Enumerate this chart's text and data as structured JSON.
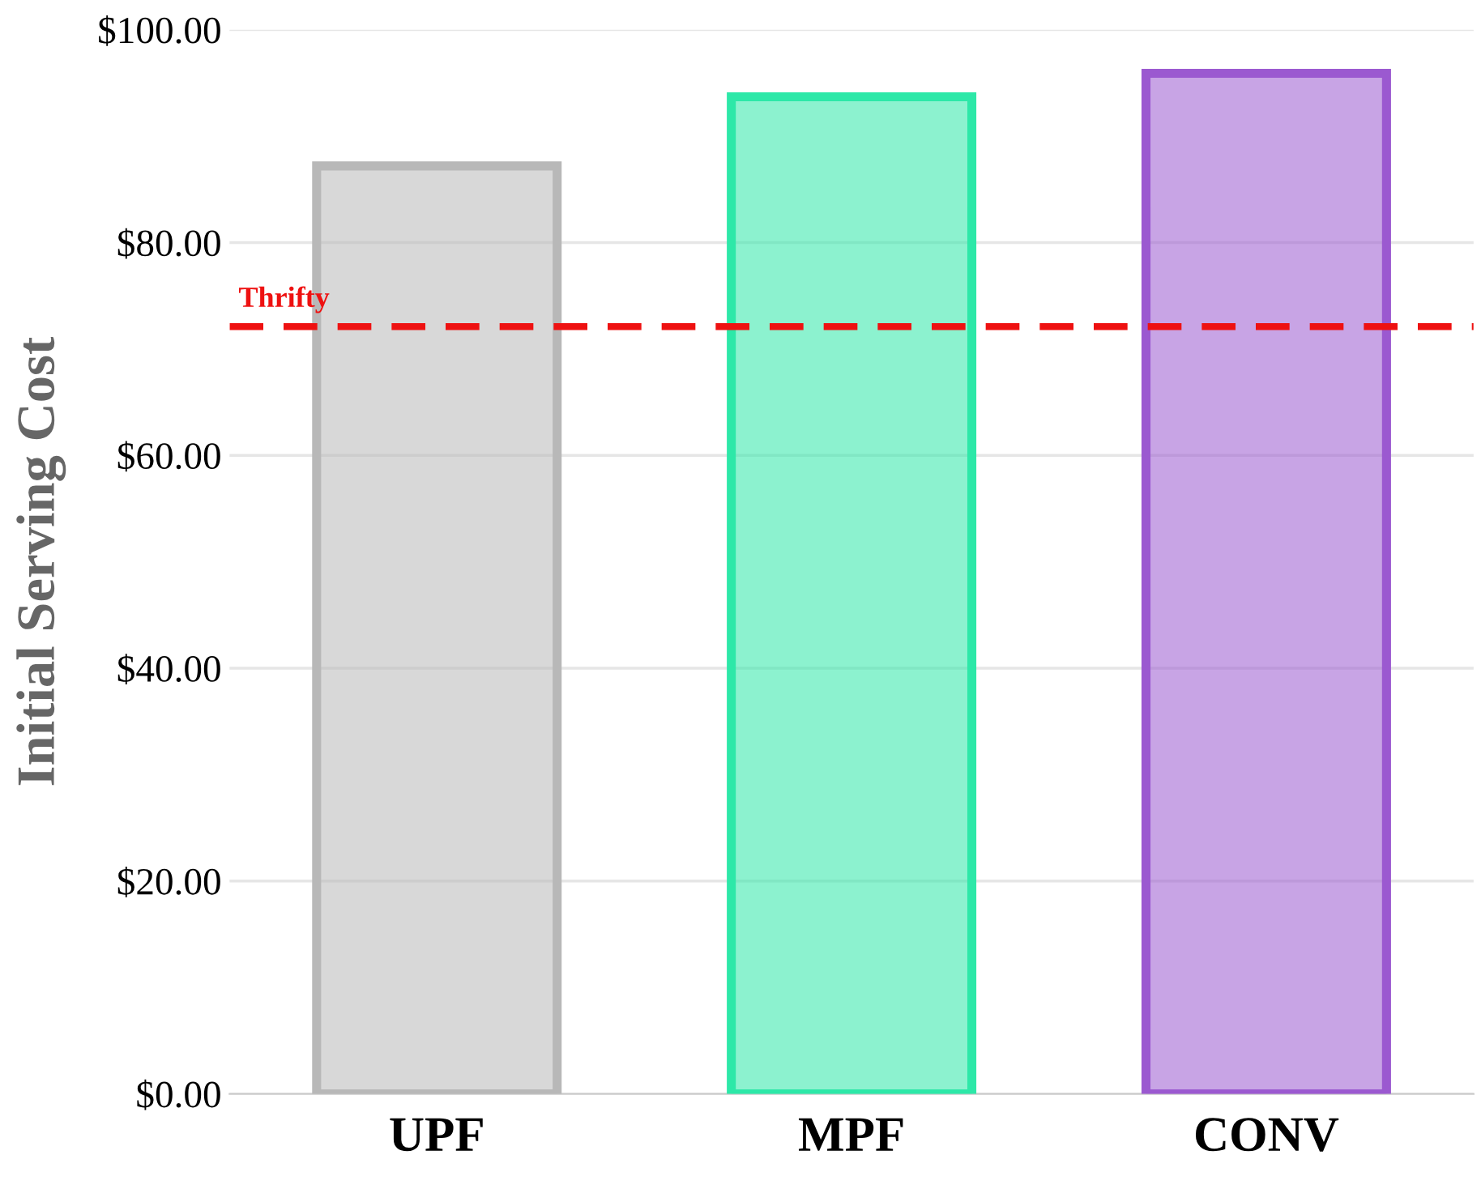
{
  "chart_data": {
    "type": "bar",
    "ylabel": "Initial Serving Cost",
    "categories": [
      "UPF",
      "MPF",
      "CONV"
    ],
    "values": [
      87.2,
      93.7,
      95.9
    ],
    "colors": [
      "#b8b8b8",
      "#2de8a8",
      "#9b59d0"
    ],
    "ylim": [
      0,
      100
    ],
    "yticks": [
      {
        "value": 0,
        "label": "$0.00"
      },
      {
        "value": 20,
        "label": "$20.00"
      },
      {
        "value": 40,
        "label": "$40.00"
      },
      {
        "value": 60,
        "label": "$60.00"
      },
      {
        "value": 80,
        "label": "$80.00"
      },
      {
        "value": 100,
        "label": "$100.00"
      }
    ],
    "grid": "y",
    "ref_lines": [
      {
        "axis": "y",
        "value": 72.1,
        "label": "Thrifty",
        "color": "#ee1111",
        "line_style": "dashed"
      }
    ]
  }
}
